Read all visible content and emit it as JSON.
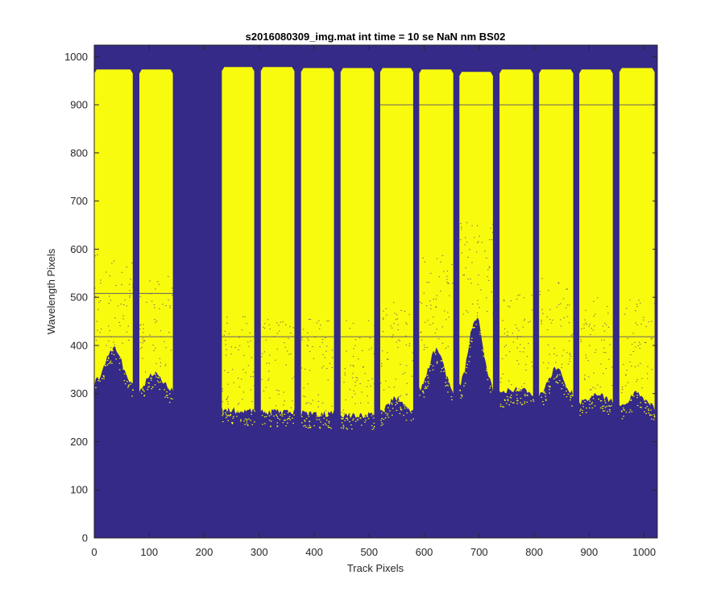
{
  "chart_data": {
    "type": "heatmap",
    "title": "s2016080309_img.mat int time = 10 se  NaN nm BS02",
    "xlabel": "Track Pixels",
    "ylabel": "Wavelength Pixels",
    "xlim": [
      0,
      1024
    ],
    "ylim": [
      0,
      1024
    ],
    "xticks": [
      0,
      100,
      200,
      300,
      400,
      500,
      600,
      700,
      800,
      900,
      1000
    ],
    "yticks": [
      0,
      100,
      200,
      300,
      400,
      500,
      600,
      700,
      800,
      900,
      1000
    ],
    "grid": false,
    "colors": {
      "background": "#352a87",
      "saturated": "#f9fb0e",
      "figure": "#ffffff",
      "axis": "#262626"
    },
    "tracks": [
      {
        "x0": 0,
        "x1": 70,
        "y_top": 975,
        "y_bottom": 315,
        "spectral_bump": true,
        "bump_center": 35,
        "bump_height": 395
      },
      {
        "x0": 82,
        "x1": 143,
        "y_top": 975,
        "y_bottom": 305,
        "spectral_bump": true,
        "bump_center": 110,
        "bump_height": 345
      },
      {
        "x0": 232,
        "x1": 291,
        "y_top": 980,
        "y_bottom": 265,
        "spectral_bump": false,
        "bump_center": 260,
        "bump_height": 265
      },
      {
        "x0": 303,
        "x1": 364,
        "y_top": 980,
        "y_bottom": 262,
        "spectral_bump": false,
        "bump_center": 333,
        "bump_height": 262
      },
      {
        "x0": 376,
        "x1": 436,
        "y_top": 978,
        "y_bottom": 258,
        "spectral_bump": false,
        "bump_center": 406,
        "bump_height": 258
      },
      {
        "x0": 448,
        "x1": 509,
        "y_top": 978,
        "y_bottom": 255,
        "spectral_bump": false,
        "bump_center": 478,
        "bump_height": 255
      },
      {
        "x0": 520,
        "x1": 580,
        "y_top": 978,
        "y_bottom": 262,
        "spectral_bump": false,
        "bump_center": 550,
        "bump_height": 290
      },
      {
        "x0": 591,
        "x1": 653,
        "y_top": 975,
        "y_bottom": 300,
        "spectral_bump": true,
        "bump_center": 622,
        "bump_height": 390
      },
      {
        "x0": 664,
        "x1": 725,
        "y_top": 970,
        "y_bottom": 300,
        "spectral_bump": true,
        "bump_center": 694,
        "bump_height": 460
      },
      {
        "x0": 737,
        "x1": 798,
        "y_top": 975,
        "y_bottom": 300,
        "spectral_bump": false,
        "bump_center": 767,
        "bump_height": 310
      },
      {
        "x0": 809,
        "x1": 871,
        "y_top": 975,
        "y_bottom": 295,
        "spectral_bump": true,
        "bump_center": 840,
        "bump_height": 350
      },
      {
        "x0": 882,
        "x1": 943,
        "y_top": 975,
        "y_bottom": 280,
        "spectral_bump": false,
        "bump_center": 912,
        "bump_height": 300
      },
      {
        "x0": 955,
        "x1": 1019,
        "y_top": 978,
        "y_bottom": 270,
        "spectral_bump": false,
        "bump_center": 987,
        "bump_height": 300
      }
    ],
    "horizontal_lines": [
      {
        "y": 900,
        "x0": 520,
        "x1": 1024
      },
      {
        "y": 418,
        "x0": 0,
        "x1": 1024
      },
      {
        "y": 508,
        "x0": 0,
        "x1": 150
      }
    ]
  }
}
